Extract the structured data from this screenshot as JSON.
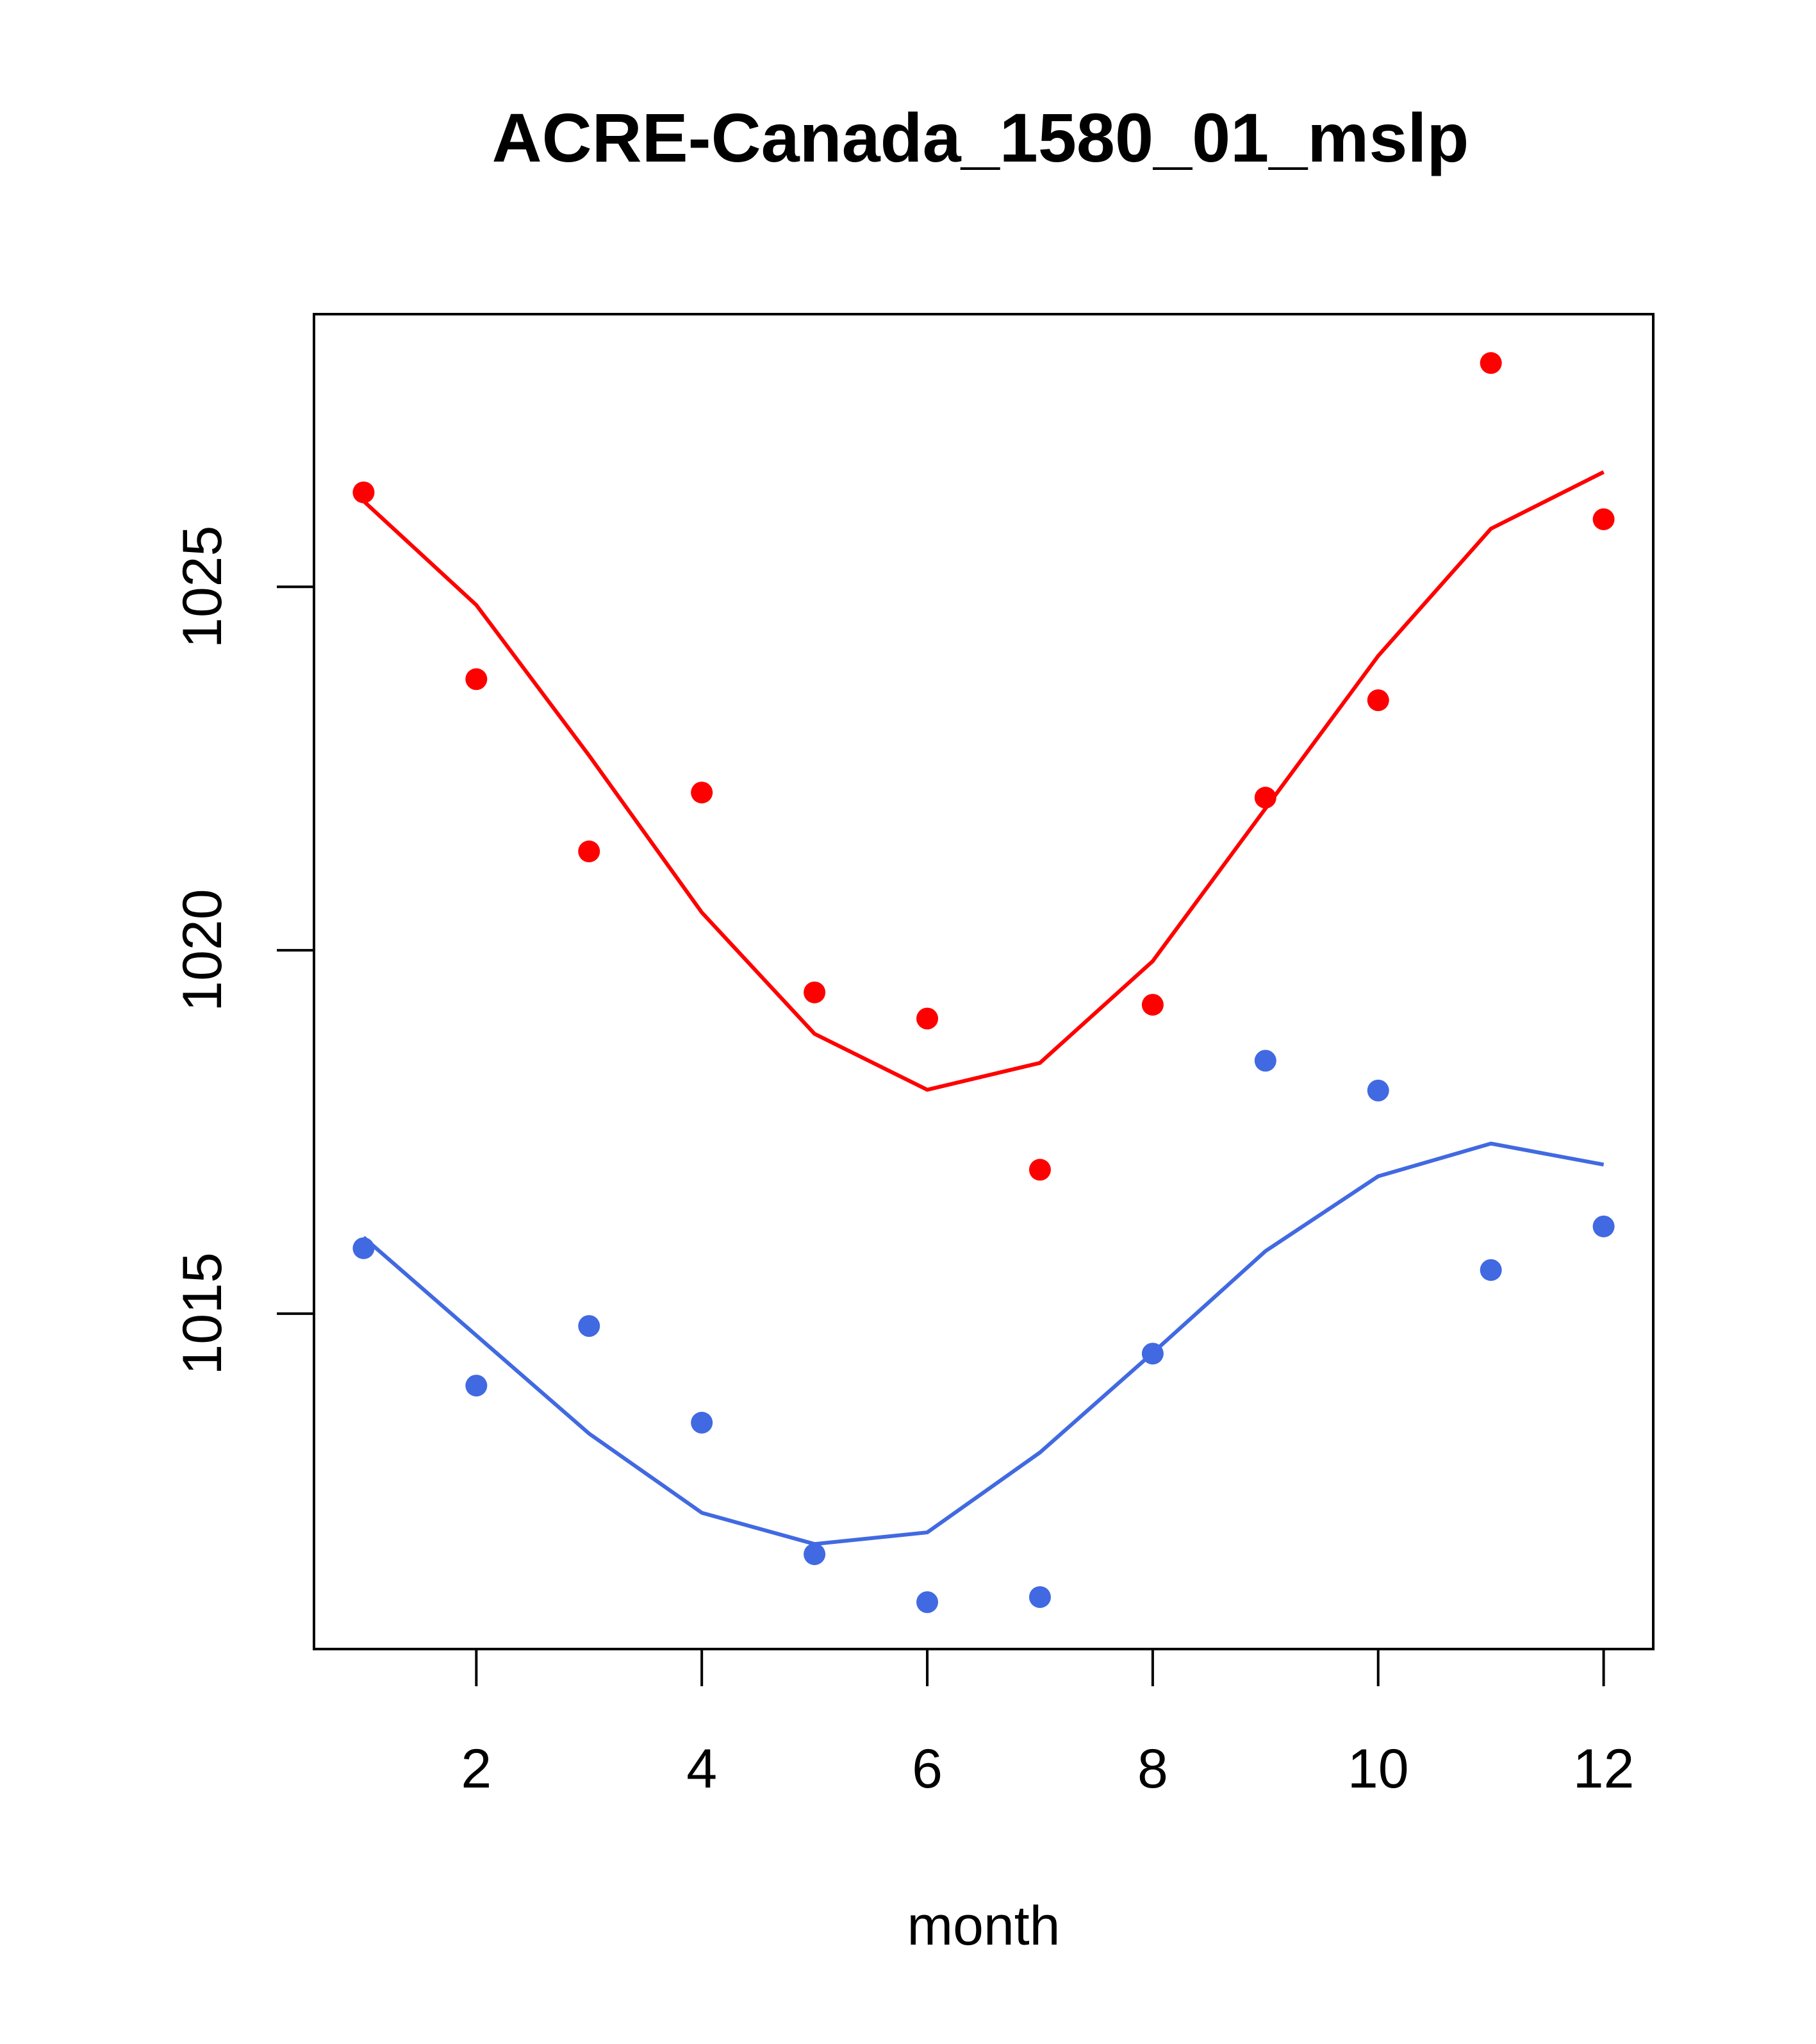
{
  "chart_data": {
    "type": "scatter",
    "title": "ACRE-Canada_1580_01_mslp",
    "xlabel": "month",
    "ylabel": "",
    "xlim": [
      0.56,
      12.44
    ],
    "ylim": [
      1010.385,
      1028.752
    ],
    "x_ticks": [
      2,
      4,
      6,
      8,
      10,
      12
    ],
    "x_tick_labels": [
      "2",
      "4",
      "6",
      "8",
      "10",
      "12"
    ],
    "y_ticks": [
      1015,
      1020,
      1025
    ],
    "y_tick_labels": [
      "1015",
      "1020",
      "1025"
    ],
    "grid": false,
    "legend": "none",
    "x": [
      1,
      2,
      3,
      4,
      5,
      6,
      7,
      8,
      9,
      10,
      11,
      12
    ],
    "series": [
      {
        "name": "red-points",
        "kind": "points",
        "color": "#ff0000",
        "values": [
          1026.3,
          1023.73,
          1021.36,
          1022.17,
          1019.42,
          1019.06,
          1016.98,
          1019.25,
          1022.1,
          1023.44,
          1028.08,
          1025.93
        ]
      },
      {
        "name": "red-line",
        "kind": "line",
        "color": "#ff0000",
        "values": [
          1026.18,
          1024.75,
          1022.68,
          1020.52,
          1018.85,
          1018.08,
          1018.45,
          1019.85,
          1021.95,
          1024.05,
          1025.8,
          1026.58
        ]
      },
      {
        "name": "blue-points",
        "kind": "points",
        "color": "#4169e1",
        "values": [
          1015.9,
          1014.01,
          1014.83,
          1013.5,
          1011.69,
          1011.03,
          1011.1,
          1014.45,
          1018.48,
          1018.07,
          1015.6,
          1016.2
        ]
      },
      {
        "name": "blue-line",
        "kind": "line",
        "color": "#4169e1",
        "values": [
          1016.05,
          1014.7,
          1013.35,
          1012.26,
          1011.83,
          1011.99,
          1013.09,
          1014.46,
          1015.86,
          1016.89,
          1017.34,
          1017.05
        ]
      }
    ]
  }
}
